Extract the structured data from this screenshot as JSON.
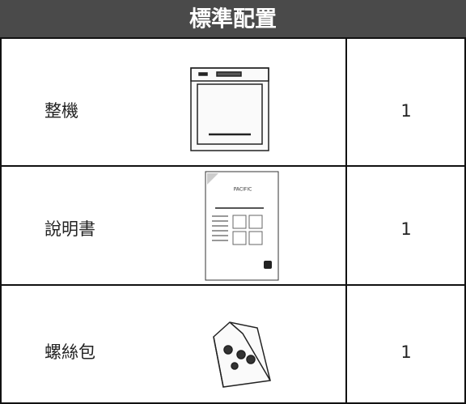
{
  "header": {
    "title": "標準配置"
  },
  "table": {
    "rows": [
      [
        "整機",
        1
      ],
      [
        "說明書",
        1
      ],
      [
        "螺絲包",
        1
      ]
    ]
  }
}
